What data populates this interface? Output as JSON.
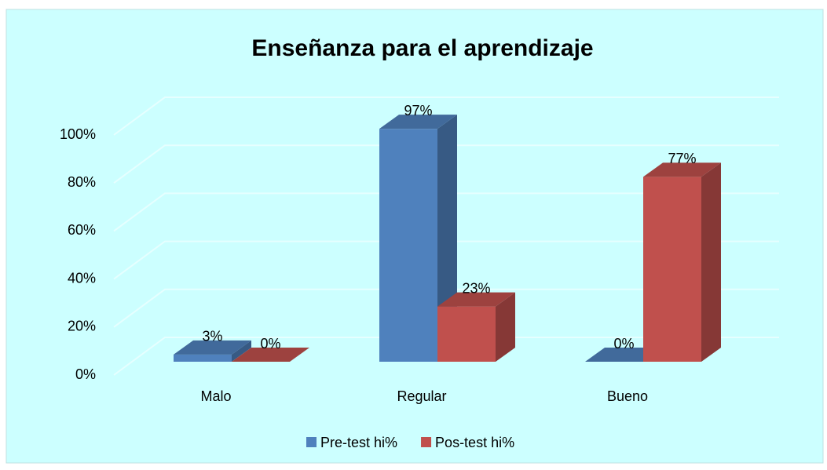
{
  "chart_data": {
    "type": "bar3d",
    "title": "Enseñanza para el aprendizaje",
    "categories": [
      "Malo",
      "Regular",
      "Bueno"
    ],
    "series": [
      {
        "name": "Pre-test hi%",
        "color": "#4f81bd",
        "values": [
          3,
          97,
          0
        ],
        "value_labels": [
          "3%",
          "97%",
          "0%"
        ]
      },
      {
        "name": "Pos-test hi%",
        "color": "#c0504d",
        "values": [
          0,
          23,
          77
        ],
        "value_labels": [
          "0%",
          "23%",
          "77%"
        ]
      }
    ],
    "ylim": [
      0,
      100
    ],
    "yticks": [
      {
        "value": 0,
        "label": "0%"
      },
      {
        "value": 20,
        "label": "20%"
      },
      {
        "value": 40,
        "label": "40%"
      },
      {
        "value": 60,
        "label": "60%"
      },
      {
        "value": 80,
        "label": "80%"
      },
      {
        "value": 100,
        "label": "100%"
      }
    ],
    "grid": true,
    "legend": "bottom"
  }
}
